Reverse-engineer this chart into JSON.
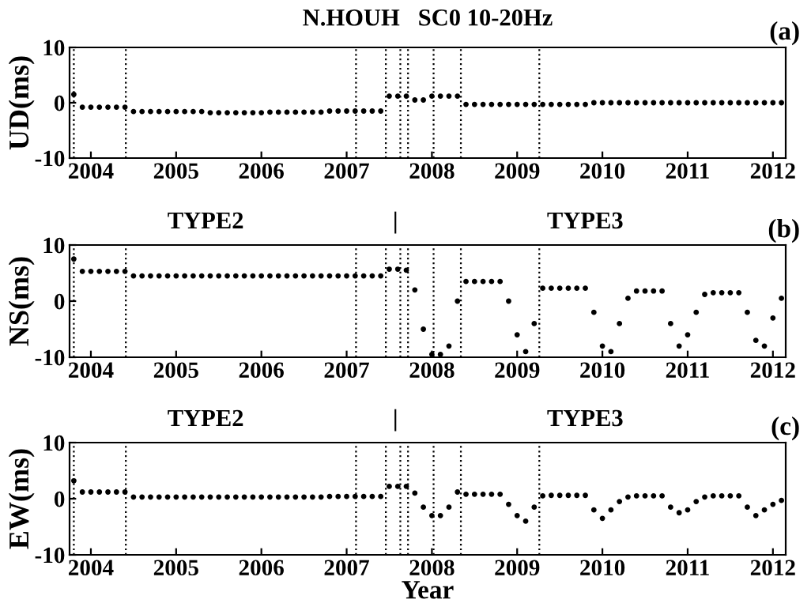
{
  "chart_data": [
    {
      "type": "scatter",
      "title": "N.HOUH   SC0 10-20Hz",
      "ylabel": "UD(ms)",
      "annotations": [
        "(a)"
      ],
      "x": [
        2003.8,
        2003.9,
        2004.0,
        2004.1,
        2004.2,
        2004.3,
        2004.4,
        2004.5,
        2004.6,
        2004.7,
        2004.8,
        2004.9,
        2005.0,
        2005.1,
        2005.2,
        2005.3,
        2005.4,
        2005.5,
        2005.6,
        2005.7,
        2005.8,
        2005.9,
        2006.0,
        2006.1,
        2006.2,
        2006.3,
        2006.4,
        2006.5,
        2006.6,
        2006.7,
        2006.8,
        2006.9,
        2007.0,
        2007.1,
        2007.2,
        2007.3,
        2007.4,
        2007.5,
        2007.6,
        2007.7,
        2007.8,
        2007.9,
        2008.0,
        2008.1,
        2008.2,
        2008.3,
        2008.4,
        2008.5,
        2008.6,
        2008.7,
        2008.8,
        2008.9,
        2009.0,
        2009.1,
        2009.2,
        2009.3,
        2009.4,
        2009.5,
        2009.6,
        2009.7,
        2009.8,
        2009.9,
        2010.0,
        2010.1,
        2010.2,
        2010.3,
        2010.4,
        2010.5,
        2010.6,
        2010.7,
        2010.8,
        2010.9,
        2011.0,
        2011.1,
        2011.2,
        2011.3,
        2011.4,
        2011.5,
        2011.6,
        2011.7,
        2011.8,
        2011.9,
        2012.0,
        2012.1
      ],
      "series": [
        {
          "color": "#000000",
          "values": [
            1.5,
            -0.8,
            -0.8,
            -0.8,
            -0.8,
            -0.8,
            -0.8,
            -1.6,
            -1.6,
            -1.6,
            -1.6,
            -1.6,
            -1.6,
            -1.6,
            -1.6,
            -1.6,
            -1.8,
            -1.8,
            -1.8,
            -1.8,
            -1.8,
            -1.8,
            -1.8,
            -1.7,
            -1.7,
            -1.7,
            -1.7,
            -1.7,
            -1.7,
            -1.7,
            -1.5,
            -1.5,
            -1.5,
            -1.5,
            -1.5,
            -1.5,
            -1.5,
            1.2,
            1.2,
            1.2,
            0.5,
            0.5,
            1.2,
            1.2,
            1.2,
            1.2,
            -0.3,
            -0.3,
            -0.3,
            -0.3,
            -0.3,
            -0.3,
            -0.3,
            -0.3,
            -0.3,
            -0.3,
            -0.3,
            -0.3,
            -0.3,
            -0.3,
            -0.3,
            0,
            0,
            0,
            0,
            0,
            0,
            0,
            0,
            0,
            0,
            0,
            0,
            0,
            0,
            0,
            0,
            0,
            0,
            0,
            0,
            0,
            0,
            0
          ]
        }
      ],
      "xlim": [
        2003.75,
        2012.15
      ],
      "xticks": [
        2004,
        2005,
        2006,
        2007,
        2008,
        2009,
        2010,
        2011,
        2012
      ],
      "ylim": [
        -10,
        10
      ],
      "yticks": [
        -10,
        0,
        10
      ],
      "marker": "circle",
      "grid": false,
      "ref_lines": [
        {
          "axis": "x",
          "value": 2003.8,
          "line_style": "dotted",
          "color": "#000000"
        },
        {
          "axis": "x",
          "value": 2004.41,
          "line_style": "dotted",
          "color": "#000000"
        },
        {
          "axis": "x",
          "value": 2007.11,
          "line_style": "dotted",
          "color": "#000000"
        },
        {
          "axis": "x",
          "value": 2007.46,
          "line_style": "dotted",
          "color": "#000000"
        },
        {
          "axis": "x",
          "value": 2007.63,
          "line_style": "dotted",
          "color": "#000000"
        },
        {
          "axis": "x",
          "value": 2007.72,
          "line_style": "dotted",
          "color": "#000000"
        },
        {
          "axis": "x",
          "value": 2008.02,
          "line_style": "dotted",
          "color": "#000000"
        },
        {
          "axis": "x",
          "value": 2008.34,
          "line_style": "dotted",
          "color": "#000000"
        },
        {
          "axis": "x",
          "value": 2009.26,
          "line_style": "dotted",
          "color": "#000000"
        }
      ]
    },
    {
      "type": "scatter",
      "ylabel": "NS(ms)",
      "annotations": [
        "TYPE2",
        "|",
        "TYPE3",
        "(b)"
      ],
      "x": [
        2003.8,
        2003.9,
        2004.0,
        2004.1,
        2004.2,
        2004.3,
        2004.4,
        2004.5,
        2004.6,
        2004.7,
        2004.8,
        2004.9,
        2005.0,
        2005.1,
        2005.2,
        2005.3,
        2005.4,
        2005.5,
        2005.6,
        2005.7,
        2005.8,
        2005.9,
        2006.0,
        2006.1,
        2006.2,
        2006.3,
        2006.4,
        2006.5,
        2006.6,
        2006.7,
        2006.8,
        2006.9,
        2007.0,
        2007.1,
        2007.2,
        2007.3,
        2007.4,
        2007.5,
        2007.6,
        2007.7,
        2007.8,
        2007.9,
        2008.0,
        2008.1,
        2008.2,
        2008.3,
        2008.4,
        2008.5,
        2008.6,
        2008.7,
        2008.8,
        2008.9,
        2009.0,
        2009.1,
        2009.2,
        2009.3,
        2009.4,
        2009.5,
        2009.6,
        2009.7,
        2009.8,
        2009.9,
        2010.0,
        2010.1,
        2010.2,
        2010.3,
        2010.4,
        2010.5,
        2010.6,
        2010.7,
        2010.8,
        2010.9,
        2011.0,
        2011.1,
        2011.2,
        2011.3,
        2011.4,
        2011.5,
        2011.6,
        2011.7,
        2011.8,
        2011.9,
        2012.0,
        2012.1
      ],
      "series": [
        {
          "color": "#000000",
          "values": [
            7.5,
            5.3,
            5.3,
            5.3,
            5.3,
            5.3,
            5.3,
            4.5,
            4.5,
            4.5,
            4.5,
            4.5,
            4.5,
            4.5,
            4.5,
            4.5,
            4.5,
            4.5,
            4.5,
            4.5,
            4.5,
            4.5,
            4.5,
            4.5,
            4.5,
            4.5,
            4.5,
            4.5,
            4.5,
            4.5,
            4.5,
            4.5,
            4.5,
            4.5,
            4.5,
            4.5,
            4.5,
            5.7,
            5.7,
            5.5,
            2,
            -5,
            -9.5,
            -9.5,
            -8,
            0,
            3.5,
            3.5,
            3.5,
            3.5,
            3.5,
            0,
            -6,
            -9,
            -4,
            2.3,
            2.3,
            2.3,
            2.3,
            2.3,
            2.3,
            -2,
            -8,
            -9,
            -4,
            0.5,
            1.8,
            1.8,
            1.8,
            1.8,
            -4,
            -8,
            -6,
            -2,
            1.2,
            1.5,
            1.5,
            1.5,
            1.5,
            -2,
            -7,
            -8,
            -3,
            0.5
          ]
        }
      ],
      "xlim": [
        2003.75,
        2012.15
      ],
      "xticks": [
        2004,
        2005,
        2006,
        2007,
        2008,
        2009,
        2010,
        2011,
        2012
      ],
      "ylim": [
        -10,
        10
      ],
      "yticks": [
        -10,
        0,
        10
      ],
      "marker": "circle",
      "grid": false,
      "ref_lines": [
        {
          "axis": "x",
          "value": 2003.8,
          "line_style": "dotted",
          "color": "#000000"
        },
        {
          "axis": "x",
          "value": 2004.41,
          "line_style": "dotted",
          "color": "#000000"
        },
        {
          "axis": "x",
          "value": 2007.11,
          "line_style": "dotted",
          "color": "#000000"
        },
        {
          "axis": "x",
          "value": 2007.46,
          "line_style": "dotted",
          "color": "#000000"
        },
        {
          "axis": "x",
          "value": 2007.63,
          "line_style": "dotted",
          "color": "#000000"
        },
        {
          "axis": "x",
          "value": 2007.72,
          "line_style": "dotted",
          "color": "#000000"
        },
        {
          "axis": "x",
          "value": 2008.02,
          "line_style": "dotted",
          "color": "#000000"
        },
        {
          "axis": "x",
          "value": 2008.34,
          "line_style": "dotted",
          "color": "#000000"
        },
        {
          "axis": "x",
          "value": 2009.26,
          "line_style": "dotted",
          "color": "#000000"
        }
      ]
    },
    {
      "type": "scatter",
      "ylabel": "EW(ms)",
      "xlabel": "Year",
      "annotations": [
        "TYPE2",
        "|",
        "TYPE3",
        "(c)"
      ],
      "x": [
        2003.8,
        2003.9,
        2004.0,
        2004.1,
        2004.2,
        2004.3,
        2004.4,
        2004.5,
        2004.6,
        2004.7,
        2004.8,
        2004.9,
        2005.0,
        2005.1,
        2005.2,
        2005.3,
        2005.4,
        2005.5,
        2005.6,
        2005.7,
        2005.8,
        2005.9,
        2006.0,
        2006.1,
        2006.2,
        2006.3,
        2006.4,
        2006.5,
        2006.6,
        2006.7,
        2006.8,
        2006.9,
        2007.0,
        2007.1,
        2007.2,
        2007.3,
        2007.4,
        2007.5,
        2007.6,
        2007.7,
        2007.8,
        2007.9,
        2008.0,
        2008.1,
        2008.2,
        2008.3,
        2008.4,
        2008.5,
        2008.6,
        2008.7,
        2008.8,
        2008.9,
        2009.0,
        2009.1,
        2009.2,
        2009.3,
        2009.4,
        2009.5,
        2009.6,
        2009.7,
        2009.8,
        2009.9,
        2010.0,
        2010.1,
        2010.2,
        2010.3,
        2010.4,
        2010.5,
        2010.6,
        2010.7,
        2010.8,
        2010.9,
        2011.0,
        2011.1,
        2011.2,
        2011.3,
        2011.4,
        2011.5,
        2011.6,
        2011.7,
        2011.8,
        2011.9,
        2012.0,
        2012.1
      ],
      "series": [
        {
          "color": "#000000",
          "values": [
            3.2,
            1.2,
            1.2,
            1.2,
            1.2,
            1.2,
            1.2,
            0.3,
            0.3,
            0.3,
            0.3,
            0.3,
            0.3,
            0.3,
            0.3,
            0.3,
            0.3,
            0.3,
            0.3,
            0.3,
            0.3,
            0.3,
            0.3,
            0.3,
            0.3,
            0.3,
            0.3,
            0.3,
            0.3,
            0.3,
            0.4,
            0.4,
            0.4,
            0.4,
            0.4,
            0.4,
            0.4,
            2.2,
            2.2,
            2.2,
            1,
            -1.5,
            -3,
            -3,
            -1.5,
            1.2,
            0.8,
            0.8,
            0.8,
            0.8,
            0.8,
            -1,
            -3,
            -4,
            -1.5,
            0.5,
            0.6,
            0.6,
            0.6,
            0.6,
            0.6,
            -2,
            -3.5,
            -2,
            -0.5,
            0.3,
            0.5,
            0.5,
            0.5,
            0.5,
            -1.5,
            -2.5,
            -2,
            -0.5,
            0.3,
            0.5,
            0.5,
            0.5,
            0.5,
            -1.5,
            -3,
            -2,
            -1,
            -0.3
          ]
        }
      ],
      "xlim": [
        2003.75,
        2012.15
      ],
      "xticks": [
        2004,
        2005,
        2006,
        2007,
        2008,
        2009,
        2010,
        2011,
        2012
      ],
      "ylim": [
        -10,
        10
      ],
      "yticks": [
        -10,
        0,
        10
      ],
      "marker": "circle",
      "grid": false,
      "ref_lines": [
        {
          "axis": "x",
          "value": 2003.8,
          "line_style": "dotted",
          "color": "#000000"
        },
        {
          "axis": "x",
          "value": 2004.41,
          "line_style": "dotted",
          "color": "#000000"
        },
        {
          "axis": "x",
          "value": 2007.11,
          "line_style": "dotted",
          "color": "#000000"
        },
        {
          "axis": "x",
          "value": 2007.46,
          "line_style": "dotted",
          "color": "#000000"
        },
        {
          "axis": "x",
          "value": 2007.63,
          "line_style": "dotted",
          "color": "#000000"
        },
        {
          "axis": "x",
          "value": 2007.72,
          "line_style": "dotted",
          "color": "#000000"
        },
        {
          "axis": "x",
          "value": 2008.02,
          "line_style": "dotted",
          "color": "#000000"
        },
        {
          "axis": "x",
          "value": 2008.34,
          "line_style": "dotted",
          "color": "#000000"
        },
        {
          "axis": "x",
          "value": 2009.26,
          "line_style": "dotted",
          "color": "#000000"
        }
      ]
    }
  ]
}
